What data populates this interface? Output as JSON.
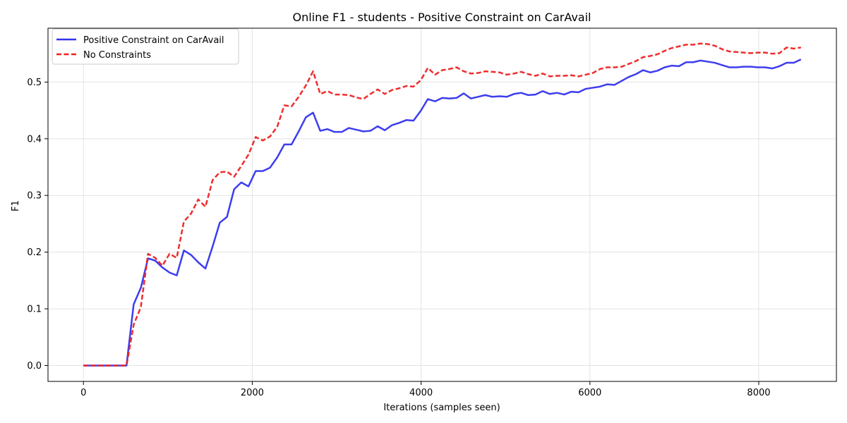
{
  "chart_data": {
    "type": "line",
    "title": "Online F1 - students - Positive Constraint on CarAvail",
    "xlabel": "Iterations (samples seen)",
    "ylabel": "F1",
    "xlim": [
      -420,
      8920
    ],
    "ylim": [
      -0.028,
      0.595
    ],
    "xticks": [
      0,
      2000,
      4000,
      6000,
      8000
    ],
    "xtick_labels": [
      "0",
      "2000",
      "4000",
      "6000",
      "8000"
    ],
    "yticks": [
      0.0,
      0.1,
      0.2,
      0.3,
      0.4,
      0.5
    ],
    "ytick_labels": [
      "0.0",
      "0.1",
      "0.2",
      "0.3",
      "0.4",
      "0.5"
    ],
    "grid": true,
    "legend_position": "top-left",
    "series": [
      {
        "name": "Positive Constraint on CarAvail",
        "color": "#3333ee",
        "style": "solid",
        "x": [
          0,
          85,
          170,
          255,
          340,
          425,
          510,
          595,
          680,
          765,
          850,
          935,
          1020,
          1105,
          1190,
          1275,
          1360,
          1445,
          1530,
          1615,
          1700,
          1785,
          1870,
          1955,
          2040,
          2125,
          2210,
          2295,
          2380,
          2465,
          2550,
          2635,
          2720,
          2805,
          2890,
          2975,
          3060,
          3145,
          3230,
          3315,
          3400,
          3485,
          3570,
          3655,
          3740,
          3825,
          3910,
          3995,
          4080,
          4165,
          4250,
          4335,
          4420,
          4505,
          4590,
          4675,
          4760,
          4845,
          4930,
          5015,
          5100,
          5185,
          5270,
          5355,
          5440,
          5525,
          5610,
          5695,
          5780,
          5865,
          5950,
          6035,
          6120,
          6205,
          6290,
          6375,
          6460,
          6545,
          6630,
          6715,
          6800,
          6885,
          6970,
          7055,
          7140,
          7225,
          7310,
          7395,
          7480,
          7565,
          7650,
          7735,
          7820,
          7905,
          7990,
          8075,
          8160,
          8245,
          8330,
          8415,
          8500
        ],
        "y": [
          0,
          0,
          0,
          0,
          0,
          0,
          0,
          0.108,
          0.137,
          0.189,
          0.185,
          0.173,
          0.164,
          0.159,
          0.203,
          0.195,
          0.182,
          0.171,
          0.21,
          0.252,
          0.262,
          0.311,
          0.323,
          0.316,
          0.343,
          0.343,
          0.349,
          0.367,
          0.39,
          0.39,
          0.413,
          0.438,
          0.446,
          0.414,
          0.417,
          0.412,
          0.412,
          0.419,
          0.416,
          0.413,
          0.414,
          0.422,
          0.415,
          0.424,
          0.428,
          0.433,
          0.432,
          0.449,
          0.47,
          0.466,
          0.472,
          0.471,
          0.472,
          0.48,
          0.471,
          0.474,
          0.477,
          0.474,
          0.475,
          0.474,
          0.479,
          0.481,
          0.477,
          0.478,
          0.484,
          0.479,
          0.481,
          0.478,
          0.483,
          0.482,
          0.488,
          0.49,
          0.492,
          0.496,
          0.495,
          0.502,
          0.509,
          0.514,
          0.521,
          0.517,
          0.52,
          0.526,
          0.529,
          0.528,
          0.535,
          0.535,
          0.538,
          0.536,
          0.534,
          0.53,
          0.526,
          0.526,
          0.527,
          0.527,
          0.526,
          0.526,
          0.524,
          0.528,
          0.534,
          0.534,
          0.54
        ]
      },
      {
        "name": "No Constraints",
        "color": "#ee2222",
        "style": "dashed",
        "x": [
          0,
          85,
          170,
          255,
          340,
          425,
          510,
          595,
          680,
          765,
          850,
          935,
          1020,
          1105,
          1190,
          1275,
          1360,
          1445,
          1530,
          1615,
          1700,
          1785,
          1870,
          1955,
          2040,
          2125,
          2210,
          2295,
          2380,
          2465,
          2550,
          2635,
          2720,
          2805,
          2890,
          2975,
          3060,
          3145,
          3230,
          3315,
          3400,
          3485,
          3570,
          3655,
          3740,
          3825,
          3910,
          3995,
          4080,
          4165,
          4250,
          4335,
          4420,
          4505,
          4590,
          4675,
          4760,
          4845,
          4930,
          5015,
          5100,
          5185,
          5270,
          5355,
          5440,
          5525,
          5610,
          5695,
          5780,
          5865,
          5950,
          6035,
          6120,
          6205,
          6290,
          6375,
          6460,
          6545,
          6630,
          6715,
          6800,
          6885,
          6970,
          7055,
          7140,
          7225,
          7310,
          7395,
          7480,
          7565,
          7650,
          7735,
          7820,
          7905,
          7990,
          8075,
          8160,
          8245,
          8330,
          8415,
          8500
        ],
        "y": [
          0,
          0,
          0,
          0,
          0,
          0,
          0,
          0.072,
          0.103,
          0.197,
          0.19,
          0.176,
          0.197,
          0.19,
          0.254,
          0.268,
          0.293,
          0.28,
          0.327,
          0.341,
          0.342,
          0.333,
          0.352,
          0.372,
          0.403,
          0.397,
          0.404,
          0.421,
          0.459,
          0.457,
          0.474,
          0.494,
          0.519,
          0.479,
          0.484,
          0.478,
          0.478,
          0.477,
          0.473,
          0.47,
          0.479,
          0.487,
          0.479,
          0.486,
          0.489,
          0.493,
          0.492,
          0.503,
          0.525,
          0.513,
          0.521,
          0.523,
          0.526,
          0.519,
          0.515,
          0.516,
          0.519,
          0.518,
          0.517,
          0.513,
          0.515,
          0.518,
          0.514,
          0.511,
          0.515,
          0.51,
          0.511,
          0.511,
          0.512,
          0.51,
          0.513,
          0.516,
          0.523,
          0.526,
          0.526,
          0.527,
          0.532,
          0.537,
          0.544,
          0.546,
          0.549,
          0.555,
          0.56,
          0.563,
          0.566,
          0.566,
          0.568,
          0.567,
          0.564,
          0.558,
          0.554,
          0.553,
          0.552,
          0.551,
          0.552,
          0.552,
          0.55,
          0.551,
          0.561,
          0.559,
          0.561
        ]
      }
    ]
  }
}
